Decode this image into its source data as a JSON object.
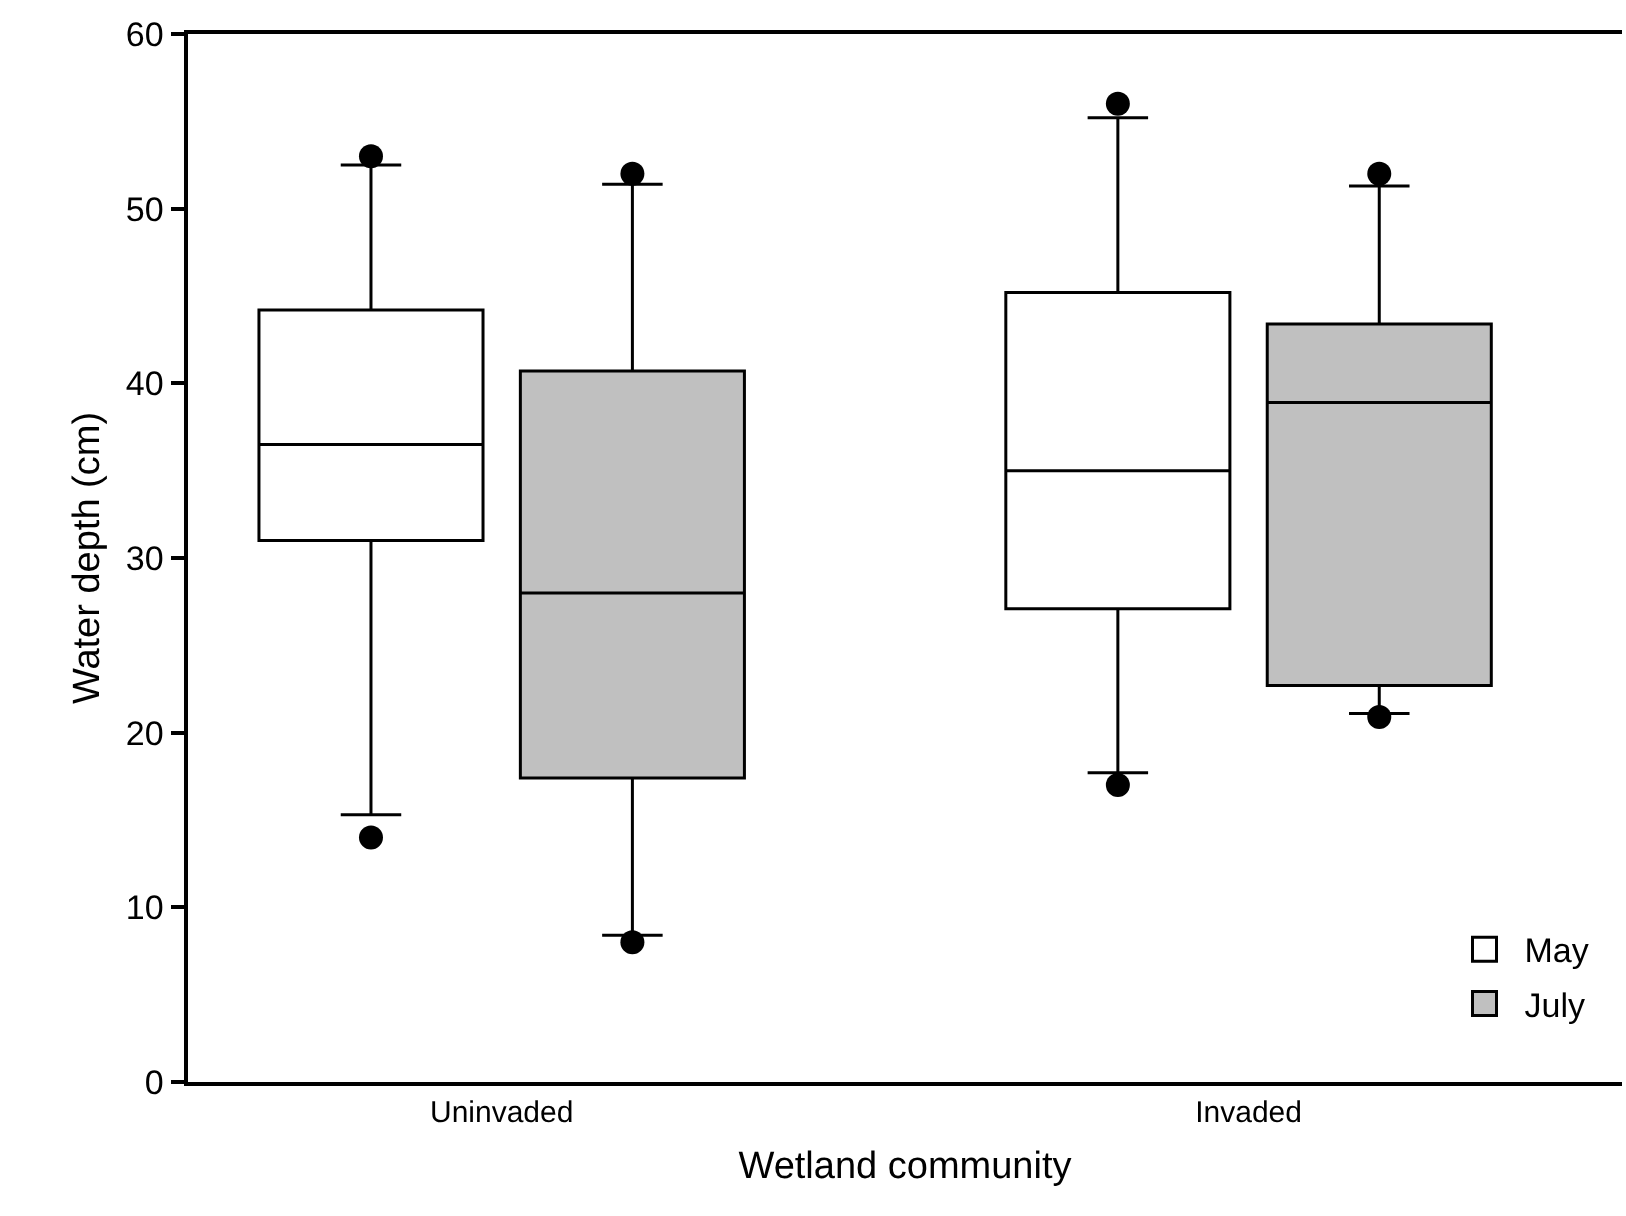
{
  "chart_data": {
    "type": "box",
    "xlabel": "Wetland community",
    "ylabel": "Water depth (cm)",
    "categories": [
      "Uninvaded",
      "Invaded"
    ],
    "series": [
      {
        "name": "May",
        "color": "#ffffff",
        "boxes": [
          {
            "low": 15.3,
            "q1": 31,
            "median": 36.5,
            "q3": 44.2,
            "high": 52.5,
            "outliers": [
              53,
              14
            ]
          },
          {
            "low": 17.7,
            "q1": 27.1,
            "median": 35,
            "q3": 45.2,
            "high": 55.2,
            "outliers": [
              56,
              17
            ]
          }
        ]
      },
      {
        "name": "July",
        "color": "#c0c0c0",
        "boxes": [
          {
            "low": 8.4,
            "q1": 17.4,
            "median": 28,
            "q3": 40.7,
            "high": 51.4,
            "outliers": [
              52,
              8
            ]
          },
          {
            "low": 21.1,
            "q1": 22.7,
            "median": 38.9,
            "q3": 43.4,
            "high": 51.3,
            "outliers": [
              52,
              20.9
            ]
          }
        ]
      }
    ],
    "ylim": [
      0,
      60
    ],
    "yticks": [
      0,
      10,
      20,
      30,
      40,
      50,
      60
    ],
    "grid": false,
    "legend": "bottom right",
    "marker": "circle"
  }
}
